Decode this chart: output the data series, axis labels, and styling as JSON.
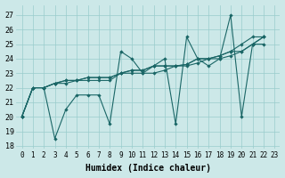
{
  "xlabel": "Humidex (Indice chaleur)",
  "bg_color": "#cce8e8",
  "grid_color": "#99cccc",
  "line_color": "#1a6666",
  "xlim": [
    -0.5,
    23.5
  ],
  "ylim": [
    17.8,
    27.7
  ],
  "yticks": [
    18,
    19,
    20,
    21,
    22,
    23,
    24,
    25,
    26,
    27
  ],
  "xticks": [
    0,
    1,
    2,
    3,
    4,
    5,
    6,
    7,
    8,
    9,
    10,
    11,
    12,
    13,
    14,
    15,
    16,
    17,
    18,
    19,
    20,
    21,
    22,
    23
  ],
  "series": [
    {
      "x": [
        0,
        1,
        2,
        3,
        4,
        5,
        6,
        7,
        8,
        9,
        10,
        11,
        12,
        13,
        14,
        15,
        16,
        17,
        18,
        19,
        20,
        21,
        22
      ],
      "y": [
        20,
        22,
        22,
        18.5,
        20.5,
        21.5,
        21.5,
        21.5,
        19.5,
        24.5,
        24.0,
        23.0,
        23.5,
        24.0,
        19.5,
        25.5,
        24.0,
        23.5,
        24.0,
        27.0,
        20.0,
        25.0,
        25.5
      ]
    },
    {
      "x": [
        0,
        1,
        2,
        3,
        4,
        5,
        6,
        7,
        8,
        9,
        10,
        11,
        12,
        13,
        14,
        15,
        16,
        17,
        18,
        19,
        20,
        21,
        22
      ],
      "y": [
        20,
        22,
        22,
        22.3,
        22.5,
        22.5,
        22.7,
        22.7,
        22.7,
        23.0,
        23.2,
        23.2,
        23.5,
        23.5,
        23.5,
        23.6,
        24.0,
        24.0,
        24.2,
        24.5,
        24.5,
        25.0,
        25.0
      ]
    },
    {
      "x": [
        0,
        1,
        2,
        3,
        4,
        5,
        6,
        7,
        8,
        9,
        10,
        11,
        12,
        13,
        14,
        15,
        16,
        17,
        18,
        19,
        20,
        21,
        22
      ],
      "y": [
        20,
        22,
        22,
        22.3,
        22.3,
        22.5,
        22.5,
        22.5,
        22.5,
        23.0,
        23.0,
        23.0,
        23.0,
        23.2,
        23.5,
        23.5,
        23.7,
        24.0,
        24.0,
        24.2,
        24.5,
        25.0,
        25.5
      ]
    },
    {
      "x": [
        0,
        1,
        2,
        3,
        4,
        5,
        6,
        7,
        8,
        9,
        10,
        11,
        12,
        13,
        14,
        15,
        16,
        17,
        18,
        19,
        20,
        21,
        22
      ],
      "y": [
        20,
        22,
        22,
        22.3,
        22.5,
        22.5,
        22.7,
        22.7,
        22.7,
        23.0,
        23.2,
        23.2,
        23.5,
        23.5,
        23.5,
        23.6,
        24.0,
        24.0,
        24.2,
        24.5,
        25.0,
        25.5,
        25.5
      ]
    }
  ]
}
